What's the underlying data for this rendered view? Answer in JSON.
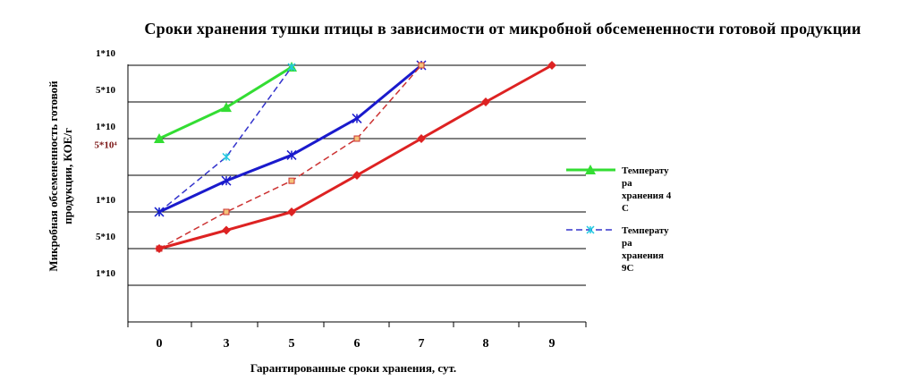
{
  "title": "Сроки хранения тушки птицы в зависимости  от микробной обсемененности готовой продукции",
  "chart_data": {
    "type": "line",
    "xlabel": "Гарантированные сроки хранения, сут.",
    "ylabel": "Микробная обсемененность готовой продукции, КОЕ/г",
    "x_categories": [
      "0",
      "3",
      "5",
      "6",
      "7",
      "8",
      "9"
    ],
    "y_ticks": [
      {
        "label": "1*10",
        "level": 7,
        "color": "#000000"
      },
      {
        "label": "5*10",
        "level": 6,
        "color": "#000000"
      },
      {
        "label": "1*10",
        "level": 5,
        "color": "#000000"
      },
      {
        "label": "5*10⁴",
        "level": 4.5,
        "color": "#7b1616"
      },
      {
        "label": "1*10",
        "level": 3,
        "color": "#000000"
      },
      {
        "label": "5*10",
        "level": 2,
        "color": "#000000"
      },
      {
        "label": "1*10",
        "level": 1,
        "color": "#000000"
      }
    ],
    "ylim": [
      0,
      8
    ],
    "grid": true,
    "series": [
      {
        "name": "Температура хранения  4 С",
        "color": "#33dd33",
        "dash": false,
        "marker": "triangle",
        "width": 3,
        "points": [
          [
            0,
            5.0
          ],
          [
            1,
            5.85
          ],
          [
            2,
            6.95
          ]
        ]
      },
      {
        "name": "Температура хранения 9С",
        "color": "#3333cc",
        "dash": true,
        "marker": "x-cyan",
        "width": 1.5,
        "points": [
          [
            0,
            3.0
          ],
          [
            1,
            4.5
          ],
          [
            2,
            6.95
          ]
        ]
      },
      {
        "name": "",
        "color": "#1a1acc",
        "dash": false,
        "marker": "x",
        "width": 3,
        "points": [
          [
            0,
            3.0
          ],
          [
            1,
            3.85
          ],
          [
            2,
            4.55
          ],
          [
            3,
            5.55
          ],
          [
            4,
            7.0
          ]
        ]
      },
      {
        "name": "",
        "color": "#cc3333",
        "dash": true,
        "marker": "square",
        "width": 1.5,
        "points": [
          [
            0,
            2.0
          ],
          [
            1,
            3.0
          ],
          [
            2,
            3.85
          ],
          [
            3,
            5.0
          ],
          [
            4,
            7.0
          ]
        ]
      },
      {
        "name": "",
        "color": "#dd2222",
        "dash": false,
        "marker": "diamond",
        "width": 3,
        "points": [
          [
            0,
            2.0
          ],
          [
            1,
            2.5
          ],
          [
            2,
            3.0
          ],
          [
            3,
            4.0
          ],
          [
            4,
            5.0
          ],
          [
            5,
            6.0
          ],
          [
            6,
            7.0
          ]
        ]
      }
    ],
    "legend": {
      "placement": "right",
      "entries": [
        {
          "lines": [
            "Температу",
            "ра",
            "хранения  4",
            "С"
          ],
          "color": "#33dd33",
          "dash": false,
          "marker": "triangle"
        },
        {
          "lines": [
            "Температу",
            "ра",
            "хранения",
            "9С"
          ],
          "color": "#3333cc",
          "dash": true,
          "marker": "x-cyan"
        }
      ]
    }
  }
}
